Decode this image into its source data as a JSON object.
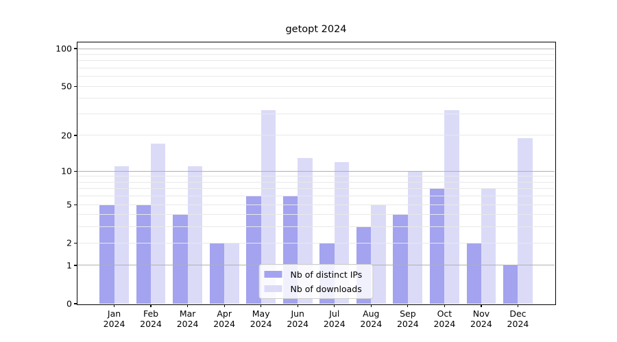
{
  "title": "getopt 2024",
  "legend": {
    "items": [
      {
        "label": "Nb of distinct IPs",
        "color_key": "ips"
      },
      {
        "label": "Nb of downloads",
        "color_key": "downloads"
      }
    ]
  },
  "colors": {
    "ips": "#a3a3ef",
    "downloads": "#dbdbf8",
    "grid_major": "#b0b0b0",
    "grid_minor": "#e8e8e8",
    "axis": "#000000"
  },
  "chart_data": {
    "type": "bar",
    "title": "getopt 2024",
    "categories": [
      "Jan",
      "Feb",
      "Mar",
      "Apr",
      "May",
      "Jun",
      "Jul",
      "Aug",
      "Sep",
      "Oct",
      "Nov",
      "Dec"
    ],
    "category_year": "2024",
    "series": [
      {
        "name": "Nb of distinct IPs",
        "color_key": "ips",
        "values": [
          5,
          5,
          4,
          2,
          6,
          6,
          2,
          3,
          4,
          7,
          2,
          1
        ]
      },
      {
        "name": "Nb of downloads",
        "color_key": "downloads",
        "values": [
          11,
          17,
          11,
          2,
          32,
          13,
          12,
          5,
          10,
          32,
          7,
          19
        ]
      }
    ],
    "xlabel": "",
    "ylabel": "",
    "yscale": "log1p",
    "ylim": [
      0,
      112
    ],
    "yticks_labeled": [
      0,
      1,
      2,
      5,
      10,
      20,
      50,
      100
    ],
    "yticks_major_grid": [
      1,
      10,
      100
    ],
    "yticks_minor_grid": [
      2,
      3,
      4,
      5,
      6,
      7,
      8,
      9,
      20,
      30,
      40,
      50,
      60,
      70,
      80,
      90
    ],
    "grid": true,
    "legend_position": "lower center"
  }
}
